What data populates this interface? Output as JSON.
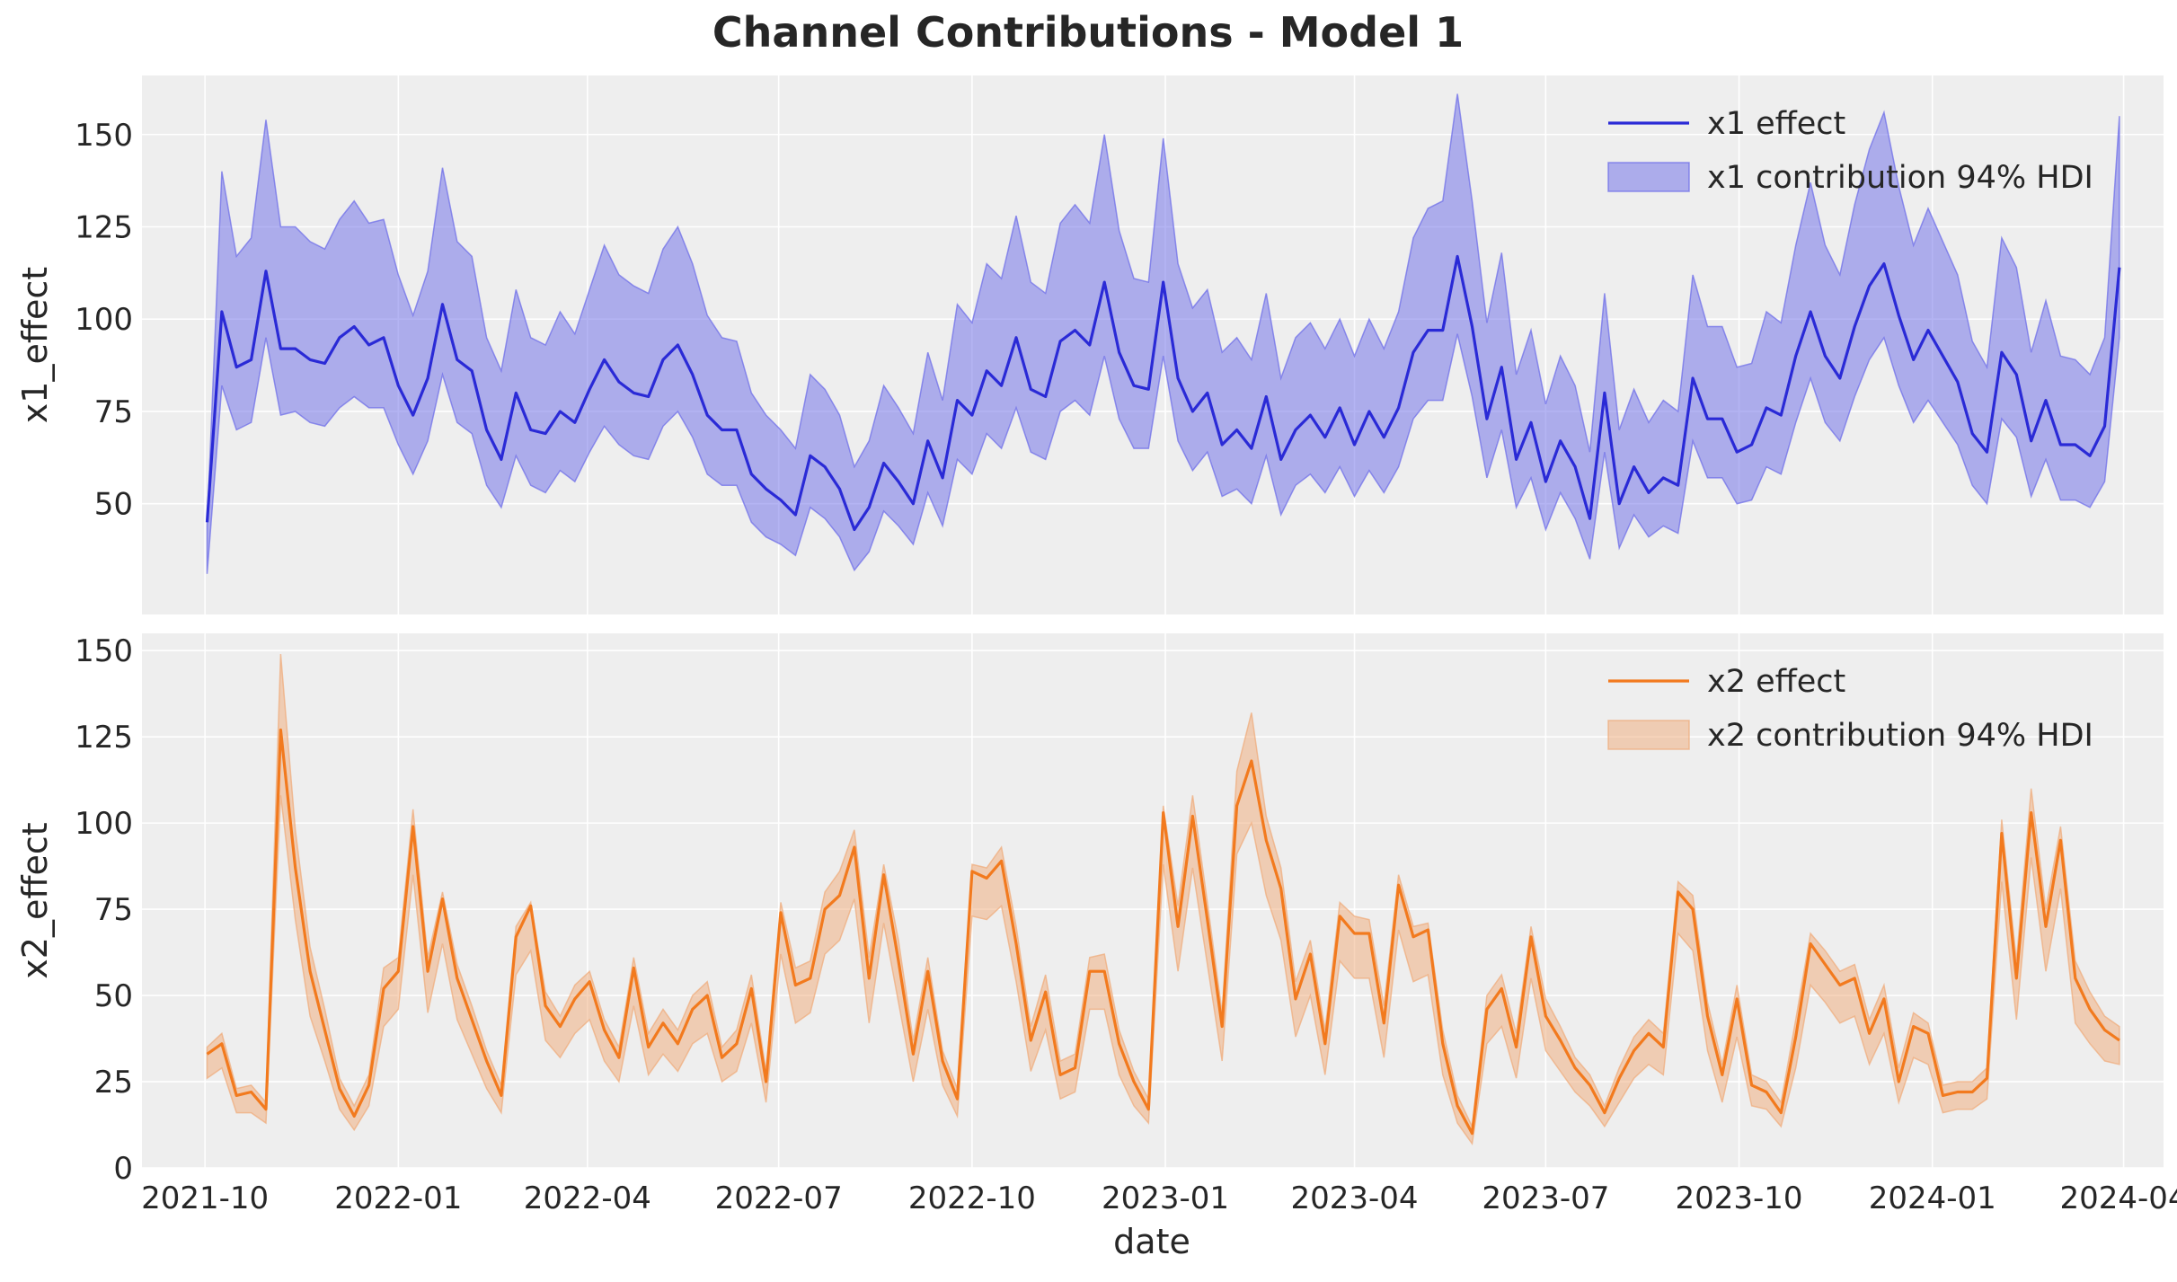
{
  "chart_data": {
    "title": "Channel Contributions - Model 1",
    "xlabel": "date",
    "x_ticks": [
      "2021-10",
      "2022-01",
      "2022-04",
      "2022-07",
      "2022-10",
      "2023-01",
      "2023-04",
      "2023-07",
      "2023-10",
      "2024-01",
      "2024-04"
    ],
    "x_range": [
      "2021-09-01",
      "2024-04-20"
    ],
    "dates": [
      "2021-10-02",
      "2021-10-09",
      "2021-10-16",
      "2021-10-23",
      "2021-10-30",
      "2021-11-06",
      "2021-11-13",
      "2021-11-20",
      "2021-11-27",
      "2021-12-04",
      "2021-12-11",
      "2021-12-18",
      "2021-12-25",
      "2022-01-01",
      "2022-01-08",
      "2022-01-15",
      "2022-01-22",
      "2022-01-29",
      "2022-02-05",
      "2022-02-12",
      "2022-02-19",
      "2022-02-26",
      "2022-03-05",
      "2022-03-12",
      "2022-03-19",
      "2022-03-26",
      "2022-04-02",
      "2022-04-09",
      "2022-04-16",
      "2022-04-23",
      "2022-04-30",
      "2022-05-07",
      "2022-05-14",
      "2022-05-21",
      "2022-05-28",
      "2022-06-04",
      "2022-06-11",
      "2022-06-18",
      "2022-06-25",
      "2022-07-02",
      "2022-07-09",
      "2022-07-16",
      "2022-07-23",
      "2022-07-30",
      "2022-08-06",
      "2022-08-13",
      "2022-08-20",
      "2022-08-27",
      "2022-09-03",
      "2022-09-10",
      "2022-09-17",
      "2022-09-24",
      "2022-10-01",
      "2022-10-08",
      "2022-10-15",
      "2022-10-22",
      "2022-10-29",
      "2022-11-05",
      "2022-11-12",
      "2022-11-19",
      "2022-11-26",
      "2022-12-03",
      "2022-12-10",
      "2022-12-17",
      "2022-12-24",
      "2022-12-31",
      "2023-01-07",
      "2023-01-14",
      "2023-01-21",
      "2023-01-28",
      "2023-02-04",
      "2023-02-11",
      "2023-02-18",
      "2023-02-25",
      "2023-03-04",
      "2023-03-11",
      "2023-03-18",
      "2023-03-25",
      "2023-04-01",
      "2023-04-08",
      "2023-04-15",
      "2023-04-22",
      "2023-04-29",
      "2023-05-06",
      "2023-05-13",
      "2023-05-20",
      "2023-05-27",
      "2023-06-03",
      "2023-06-10",
      "2023-06-17",
      "2023-06-24",
      "2023-07-01",
      "2023-07-08",
      "2023-07-15",
      "2023-07-22",
      "2023-07-29",
      "2023-08-05",
      "2023-08-12",
      "2023-08-19",
      "2023-08-26",
      "2023-09-02",
      "2023-09-09",
      "2023-09-16",
      "2023-09-23",
      "2023-09-30",
      "2023-10-07",
      "2023-10-14",
      "2023-10-21",
      "2023-10-28",
      "2023-11-04",
      "2023-11-11",
      "2023-11-18",
      "2023-11-25",
      "2023-12-02",
      "2023-12-09",
      "2023-12-16",
      "2023-12-23",
      "2023-12-30",
      "2024-01-06",
      "2024-01-13",
      "2024-01-20",
      "2024-01-27",
      "2024-02-03",
      "2024-02-10",
      "2024-02-17",
      "2024-02-24",
      "2024-03-02",
      "2024-03-09",
      "2024-03-16",
      "2024-03-23",
      "2024-03-30"
    ],
    "panels": [
      {
        "ylabel": "x1_effect",
        "ylim": [
          20,
          166
        ],
        "y_ticks": [
          50,
          75,
          100,
          125,
          150
        ],
        "color": "#2a2ad6",
        "band_color": "#6a6ae8",
        "legend_placement": "top-right",
        "line_label": "x1 effect",
        "band_label": "x1 contribution 94% HDI",
        "series_name": "x1 effect",
        "band_name": "x1 contribution 94% HDI",
        "mean": [
          45,
          102,
          87,
          89,
          113,
          92,
          92,
          89,
          88,
          95,
          98,
          93,
          95,
          82,
          74,
          84,
          104,
          89,
          86,
          70,
          62,
          80,
          70,
          69,
          75,
          72,
          81,
          89,
          83,
          80,
          79,
          89,
          93,
          85,
          74,
          70,
          70,
          58,
          54,
          51,
          47,
          63,
          60,
          54,
          43,
          49,
          61,
          56,
          50,
          67,
          57,
          78,
          74,
          86,
          82,
          95,
          81,
          79,
          94,
          97,
          93,
          110,
          91,
          82,
          81,
          110,
          84,
          75,
          80,
          66,
          70,
          65,
          79,
          62,
          70,
          74,
          68,
          76,
          66,
          75,
          68,
          76,
          91,
          97,
          97,
          117,
          98,
          73,
          87,
          62,
          72,
          56,
          67,
          60,
          46,
          80,
          50,
          60,
          53,
          57,
          55,
          84,
          73,
          73,
          64,
          66,
          76,
          74,
          90,
          102,
          90,
          84,
          98,
          109,
          115,
          101,
          89,
          97,
          90,
          83,
          69,
          64,
          91,
          85,
          67,
          78,
          66,
          66,
          63,
          71,
          114
        ],
        "lower": [
          31,
          82,
          70,
          72,
          95,
          74,
          75,
          72,
          71,
          76,
          79,
          76,
          76,
          66,
          58,
          67,
          85,
          72,
          69,
          55,
          49,
          63,
          55,
          53,
          59,
          56,
          64,
          71,
          66,
          63,
          62,
          71,
          75,
          68,
          58,
          55,
          55,
          45,
          41,
          39,
          36,
          49,
          46,
          41,
          32,
          37,
          48,
          44,
          39,
          53,
          44,
          62,
          58,
          69,
          65,
          76,
          64,
          62,
          75,
          78,
          74,
          90,
          73,
          65,
          65,
          90,
          67,
          59,
          64,
          52,
          54,
          50,
          63,
          47,
          55,
          58,
          53,
          60,
          52,
          59,
          53,
          60,
          73,
          78,
          78,
          96,
          79,
          57,
          70,
          49,
          57,
          43,
          53,
          46,
          35,
          64,
          38,
          47,
          41,
          44,
          42,
          67,
          57,
          57,
          50,
          51,
          60,
          58,
          72,
          84,
          72,
          67,
          79,
          89,
          95,
          82,
          72,
          78,
          72,
          66,
          55,
          50,
          73,
          68,
          52,
          62,
          51,
          51,
          49,
          56,
          95
        ],
        "upper": [
          44,
          140,
          117,
          122,
          154,
          125,
          125,
          121,
          119,
          127,
          132,
          126,
          127,
          112,
          101,
          113,
          141,
          121,
          117,
          95,
          86,
          108,
          95,
          93,
          102,
          96,
          108,
          120,
          112,
          109,
          107,
          119,
          125,
          115,
          101,
          95,
          94,
          80,
          74,
          70,
          65,
          85,
          81,
          74,
          60,
          67,
          82,
          76,
          69,
          91,
          78,
          104,
          99,
          115,
          111,
          128,
          110,
          107,
          126,
          131,
          126,
          150,
          124,
          111,
          110,
          149,
          115,
          103,
          108,
          91,
          95,
          89,
          107,
          84,
          95,
          99,
          92,
          100,
          90,
          100,
          92,
          102,
          122,
          130,
          132,
          161,
          132,
          99,
          118,
          85,
          97,
          77,
          90,
          82,
          64,
          107,
          70,
          81,
          72,
          78,
          75,
          112,
          98,
          98,
          87,
          88,
          102,
          99,
          120,
          137,
          120,
          112,
          131,
          146,
          156,
          136,
          120,
          130,
          121,
          112,
          94,
          87,
          122,
          114,
          91,
          105,
          90,
          89,
          85,
          95,
          155
        ]
      },
      {
        "ylabel": "x2_effect",
        "ylim": [
          0,
          155
        ],
        "y_ticks": [
          0,
          25,
          50,
          75,
          100,
          125,
          150
        ],
        "color": "#f27a1e",
        "band_color": "#f0aa78",
        "legend_placement": "top-right",
        "line_label": "x2 effect",
        "band_label": "x2 contribution 94% HDI",
        "series_name": "x2 effect",
        "band_name": "x2 contribution 94% HDI",
        "mean": [
          33,
          36,
          21,
          22,
          17,
          127,
          87,
          57,
          40,
          23,
          15,
          24,
          52,
          57,
          99,
          57,
          78,
          55,
          43,
          31,
          21,
          67,
          76,
          47,
          41,
          49,
          54,
          40,
          32,
          58,
          35,
          42,
          36,
          46,
          50,
          32,
          36,
          52,
          25,
          74,
          53,
          55,
          75,
          79,
          93,
          55,
          85,
          60,
          33,
          57,
          31,
          20,
          86,
          84,
          89,
          65,
          37,
          51,
          27,
          29,
          57,
          57,
          36,
          25,
          17,
          103,
          70,
          102,
          72,
          41,
          105,
          118,
          95,
          81,
          49,
          62,
          36,
          73,
          68,
          68,
          42,
          82,
          67,
          69,
          36,
          18,
          10,
          46,
          52,
          35,
          67,
          44,
          37,
          29,
          24,
          16,
          26,
          34,
          39,
          35,
          80,
          75,
          44,
          27,
          49,
          24,
          22,
          16,
          38,
          65,
          59,
          53,
          55,
          39,
          49,
          25,
          41,
          39,
          21,
          22,
          22,
          26,
          97,
          55,
          103,
          70,
          95,
          55,
          46,
          40,
          37
        ],
        "lower": [
          26,
          29,
          16,
          16,
          13,
          108,
          72,
          44,
          31,
          17,
          11,
          18,
          41,
          46,
          85,
          45,
          65,
          43,
          33,
          23,
          16,
          56,
          63,
          37,
          32,
          39,
          43,
          31,
          25,
          47,
          27,
          33,
          28,
          36,
          39,
          25,
          28,
          42,
          19,
          62,
          42,
          45,
          62,
          66,
          78,
          42,
          71,
          48,
          25,
          46,
          24,
          15,
          73,
          72,
          76,
          54,
          28,
          40,
          20,
          22,
          46,
          46,
          27,
          18,
          13,
          88,
          57,
          87,
          59,
          31,
          91,
          100,
          79,
          66,
          38,
          50,
          27,
          60,
          55,
          55,
          32,
          69,
          54,
          56,
          27,
          13,
          7,
          36,
          41,
          26,
          55,
          34,
          28,
          22,
          18,
          12,
          19,
          26,
          30,
          27,
          68,
          63,
          34,
          19,
          38,
          18,
          17,
          12,
          29,
          53,
          48,
          42,
          44,
          30,
          39,
          19,
          32,
          30,
          16,
          17,
          17,
          20,
          83,
          43,
          90,
          57,
          81,
          42,
          36,
          31,
          30
        ],
        "upper": [
          35,
          39,
          23,
          24,
          19,
          149,
          98,
          64,
          46,
          26,
          18,
          27,
          58,
          61,
          104,
          61,
          80,
          59,
          47,
          34,
          24,
          70,
          77,
          51,
          44,
          53,
          57,
          43,
          35,
          61,
          39,
          46,
          40,
          50,
          54,
          35,
          40,
          56,
          28,
          77,
          58,
          60,
          80,
          86,
          98,
          61,
          88,
          66,
          37,
          61,
          34,
          23,
          88,
          87,
          93,
          70,
          41,
          56,
          31,
          33,
          61,
          62,
          40,
          28,
          20,
          105,
          76,
          108,
          77,
          45,
          115,
          132,
          102,
          87,
          54,
          66,
          40,
          77,
          73,
          72,
          47,
          85,
          70,
          71,
          40,
          21,
          12,
          50,
          56,
          39,
          70,
          49,
          41,
          32,
          27,
          18,
          29,
          38,
          43,
          39,
          83,
          79,
          48,
          30,
          53,
          27,
          25,
          19,
          43,
          68,
          63,
          57,
          59,
          43,
          53,
          29,
          45,
          42,
          24,
          25,
          25,
          29,
          101,
          60,
          110,
          75,
          99,
          60,
          51,
          44,
          41
        ]
      }
    ]
  }
}
